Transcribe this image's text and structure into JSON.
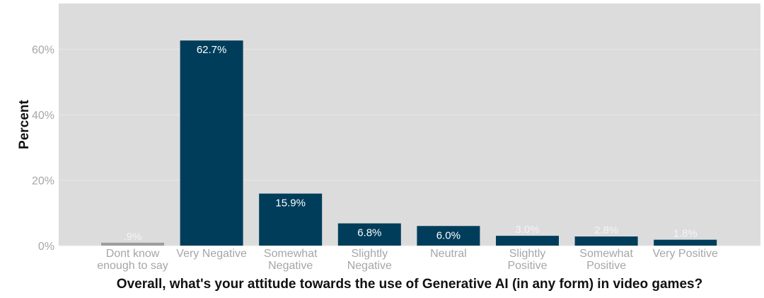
{
  "chart_data": {
    "type": "bar",
    "xlabel": "Overall, what's your attitude towards the use of Generative AI (in any form) in video games?",
    "ylabel": "Percent",
    "ylim": [
      0,
      74
    ],
    "yticks": [
      {
        "value": 0,
        "label": "0%"
      },
      {
        "value": 20,
        "label": "20%"
      },
      {
        "value": 40,
        "label": "40%"
      },
      {
        "value": 60,
        "label": "60%"
      }
    ],
    "grid": true,
    "legend": "none",
    "categories": [
      [
        "Dont know",
        "enough to say"
      ],
      [
        "Very Negative"
      ],
      [
        "Somewhat",
        "Negative"
      ],
      [
        "Slightly",
        "Negative"
      ],
      [
        "Neutral"
      ],
      [
        "Slightly",
        "Positive"
      ],
      [
        "Somewhat",
        "Positive"
      ],
      [
        "Very Positive"
      ]
    ],
    "values": [
      0.9,
      62.7,
      15.9,
      6.8,
      6.0,
      3.0,
      2.8,
      1.8
    ],
    "labels": [
      ".9%",
      "62.7%",
      "15.9%",
      "6.8%",
      "6.0%",
      "3.0%",
      "2.8%",
      "1.8%"
    ],
    "colors": [
      "#9e9e9e",
      "#003d5b",
      "#003d5b",
      "#003d5b",
      "#003d5b",
      "#003d5b",
      "#003d5b",
      "#003d5b"
    ],
    "panel_color": "#dcdcdc",
    "gridline_color": "#e8e8e8"
  }
}
